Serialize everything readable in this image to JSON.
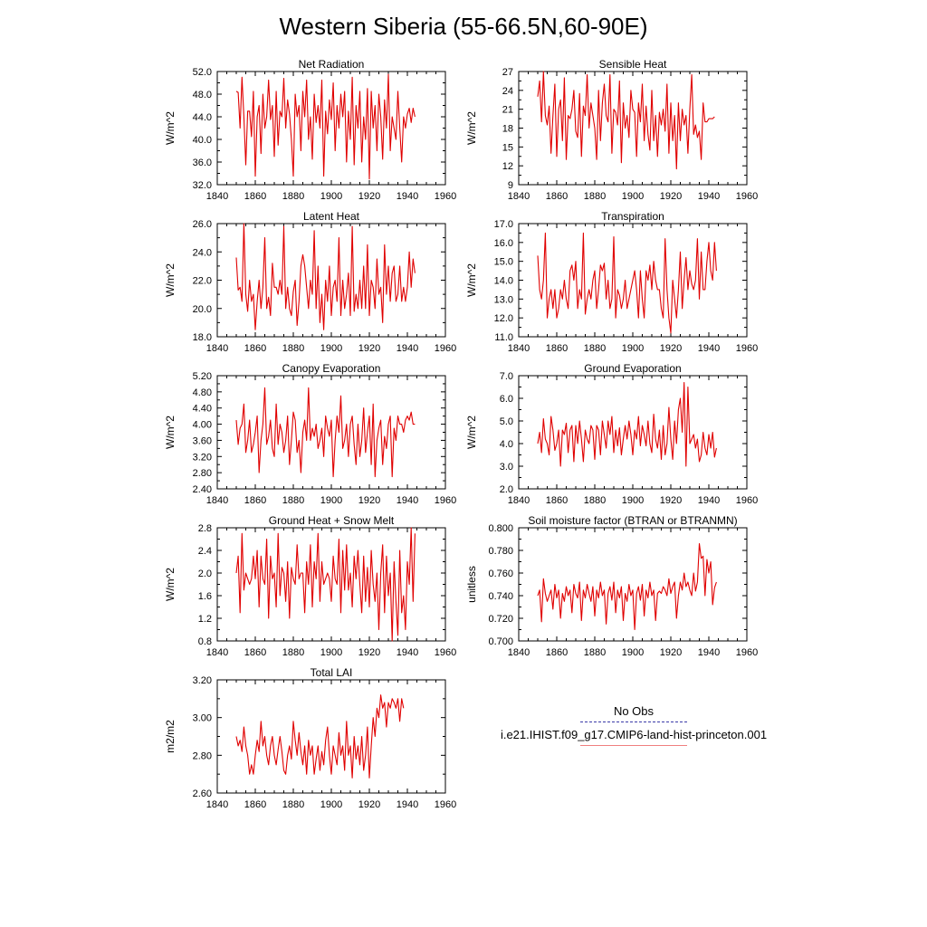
{
  "title": "Western Siberia (55-66.5N,60-90E)",
  "legend": {
    "entries": [
      {
        "label": "No Obs",
        "style": "dashed",
        "color": "#3a3aa8"
      },
      {
        "label": "i.e21.IHIST.f09_g17.CMIP6-land-hist-princeton.001",
        "style": "solid",
        "color": "#f08080"
      }
    ]
  },
  "chart_data": [
    {
      "type": "line",
      "title": "Net Radiation",
      "ylabel": "W/m^2",
      "xlim": [
        1840,
        1960
      ],
      "ylim": [
        32,
        52
      ],
      "xticks": [
        1840,
        1860,
        1880,
        1900,
        1920,
        1940,
        1960
      ],
      "yticks": [
        "32.0",
        "36.0",
        "40.0",
        "44.0",
        "48.0",
        "52.0"
      ],
      "x_start": 1850,
      "color": "#e00000",
      "values": [
        48.5,
        48.3,
        42.0,
        51.0,
        44.0,
        35.5,
        45.0,
        45.0,
        40.5,
        48.5,
        33.5,
        44.0,
        46.0,
        37.5,
        48.0,
        42.0,
        44.0,
        50.5,
        43.5,
        46.0,
        37.0,
        48.5,
        39.0,
        45.0,
        44.0,
        50.8,
        42.0,
        47.0,
        44.5,
        40.0,
        33.5,
        48.0,
        44.0,
        46.0,
        38.0,
        48.5,
        44.0,
        50.5,
        40.0,
        44.0,
        36.5,
        48.0,
        43.0,
        46.0,
        42.0,
        50.5,
        33.5,
        45.0,
        41.0,
        47.0,
        43.5,
        50.0,
        38.0,
        46.0,
        42.0,
        48.0,
        44.0,
        48.5,
        36.0,
        45.0,
        40.0,
        51.0,
        35.5,
        46.0,
        42.0,
        48.5,
        36.0,
        44.0,
        40.0,
        49.0,
        33.0,
        48.5,
        42.0,
        46.0,
        38.0,
        48.0,
        44.0,
        36.5,
        47.0,
        42.0,
        51.5,
        38.0,
        44.0,
        42.0,
        40.0,
        48.5,
        42.0,
        36.0,
        44.0,
        42.0,
        44.5,
        45.5,
        43.0,
        45.5,
        44.0
      ]
    },
    {
      "type": "line",
      "title": "Sensible Heat",
      "ylabel": "W/m^2",
      "xlim": [
        1840,
        1960
      ],
      "ylim": [
        9,
        27
      ],
      "xticks": [
        1840,
        1860,
        1880,
        1900,
        1920,
        1940,
        1960
      ],
      "yticks": [
        "9",
        "12",
        "15",
        "18",
        "21",
        "24",
        "27"
      ],
      "x_start": 1850,
      "color": "#e00000",
      "values": [
        23.0,
        25.5,
        19.0,
        27.0,
        20.0,
        18.5,
        21.5,
        14.0,
        20.0,
        25.0,
        13.5,
        21.0,
        22.5,
        16.0,
        26.0,
        13.0,
        20.0,
        19.5,
        21.0,
        24.0,
        17.5,
        16.5,
        23.5,
        13.5,
        21.5,
        20.0,
        26.5,
        18.0,
        22.0,
        20.0,
        18.0,
        13.0,
        24.0,
        16.0,
        22.0,
        25.0,
        20.0,
        19.0,
        26.5,
        14.0,
        21.0,
        20.5,
        18.5,
        25.5,
        12.5,
        22.0,
        18.0,
        20.0,
        16.5,
        24.0,
        21.0,
        20.5,
        13.5,
        22.0,
        19.0,
        25.0,
        16.0,
        21.5,
        17.0,
        14.5,
        24.0,
        16.0,
        20.0,
        13.5,
        20.5,
        18.5,
        21.0,
        17.5,
        25.0,
        14.0,
        22.0,
        16.0,
        20.0,
        11.5,
        22.0,
        16.0,
        21.0,
        18.5,
        20.0,
        14.0,
        21.0,
        26.5,
        17.0,
        18.5,
        16.5,
        17.5,
        13.0,
        22.0,
        19.0,
        19.0,
        19.5,
        19.5,
        19.5,
        19.8
      ]
    },
    {
      "type": "line",
      "title": "Latent Heat",
      "ylabel": "W/m^2",
      "xlim": [
        1840,
        1960
      ],
      "ylim": [
        18,
        26
      ],
      "xticks": [
        1840,
        1860,
        1880,
        1900,
        1920,
        1940,
        1960
      ],
      "yticks": [
        "18.0",
        "20.0",
        "22.0",
        "24.0",
        "26.0"
      ],
      "x_start": 1850,
      "color": "#e00000",
      "values": [
        23.6,
        21.3,
        21.5,
        20.5,
        26.0,
        21.0,
        19.8,
        22.0,
        20.5,
        21.0,
        18.5,
        20.5,
        22.0,
        20.0,
        21.5,
        25.0,
        20.0,
        20.8,
        19.5,
        23.2,
        21.5,
        21.5,
        21.0,
        22.0,
        21.0,
        25.8,
        20.0,
        21.5,
        20.0,
        19.5,
        21.2,
        22.0,
        18.8,
        20.5,
        23.0,
        23.8,
        23.0,
        21.5,
        20.0,
        22.0,
        21.0,
        25.5,
        20.0,
        23.0,
        19.0,
        21.0,
        18.5,
        22.0,
        20.5,
        23.0,
        19.5,
        21.5,
        22.0,
        20.5,
        25.0,
        19.5,
        22.0,
        20.0,
        21.0,
        22.5,
        19.5,
        25.8,
        19.8,
        21.0,
        20.0,
        22.0,
        20.0,
        23.0,
        20.0,
        24.5,
        19.5,
        22.0,
        21.5,
        20.0,
        23.5,
        21.0,
        21.5,
        19.0,
        24.5,
        21.0,
        23.0,
        20.5,
        22.5,
        23.0,
        20.5,
        21.0,
        23.0,
        20.5,
        21.5,
        20.5,
        21.5,
        24.0,
        21.5,
        23.5,
        22.5
      ]
    },
    {
      "type": "line",
      "title": "Transpiration",
      "ylabel": "W/m^2",
      "xlim": [
        1840,
        1960
      ],
      "ylim": [
        11,
        17
      ],
      "xticks": [
        1840,
        1860,
        1880,
        1900,
        1920,
        1940,
        1960
      ],
      "yticks": [
        "11.0",
        "12.0",
        "13.0",
        "14.0",
        "15.0",
        "16.0",
        "17.0"
      ],
      "x_start": 1850,
      "color": "#e00000",
      "values": [
        15.3,
        13.5,
        13.0,
        14.0,
        16.5,
        12.0,
        13.0,
        13.5,
        12.5,
        13.5,
        12.0,
        12.5,
        13.5,
        13.0,
        14.0,
        13.0,
        12.5,
        14.5,
        14.8,
        14.0,
        15.0,
        12.5,
        13.5,
        13.0,
        16.5,
        12.2,
        13.0,
        13.5,
        13.0,
        14.0,
        14.5,
        12.5,
        13.5,
        14.8,
        14.5,
        14.9,
        13.0,
        14.0,
        12.5,
        13.0,
        16.3,
        12.0,
        13.5,
        13.2,
        12.5,
        13.0,
        14.0,
        12.5,
        13.0,
        13.5,
        14.0,
        14.5,
        13.5,
        12.0,
        14.5,
        13.0,
        12.0,
        14.5,
        14.0,
        14.8,
        13.5,
        15.0,
        14.0,
        13.5,
        13.5,
        12.5,
        12.0,
        16.2,
        13.5,
        12.0,
        11.2,
        14.0,
        13.0,
        12.0,
        13.5,
        15.5,
        12.5,
        14.0,
        15.2,
        13.5,
        14.5,
        13.8,
        13.5,
        14.0,
        16.2,
        13.0,
        15.5,
        13.5,
        13.5,
        15.0,
        16.0,
        14.5,
        14.0,
        16.0,
        14.5
      ]
    },
    {
      "type": "line",
      "title": "Canopy Evaporation",
      "ylabel": "W/m^2",
      "xlim": [
        1840,
        1960
      ],
      "ylim": [
        2.4,
        5.2
      ],
      "xticks": [
        1840,
        1860,
        1880,
        1900,
        1920,
        1940,
        1960
      ],
      "yticks": [
        "2.40",
        "2.80",
        "3.20",
        "3.60",
        "4.00",
        "4.40",
        "4.80",
        "5.20"
      ],
      "x_start": 1850,
      "color": "#e00000",
      "values": [
        4.1,
        3.5,
        3.9,
        4.0,
        4.5,
        3.3,
        3.6,
        4.1,
        3.3,
        3.5,
        3.8,
        4.2,
        2.8,
        3.6,
        4.0,
        4.9,
        3.5,
        3.7,
        4.1,
        3.4,
        3.2,
        4.5,
        3.5,
        4.0,
        3.8,
        3.3,
        3.6,
        4.2,
        3.0,
        3.6,
        4.3,
        4.1,
        3.3,
        3.6,
        2.8,
        3.8,
        4.1,
        3.6,
        4.9,
        3.6,
        3.9,
        3.7,
        4.0,
        3.4,
        3.6,
        3.9,
        3.2,
        4.2,
        3.9,
        3.7,
        4.1,
        2.7,
        3.6,
        4.2,
        3.8,
        4.7,
        3.4,
        3.6,
        4.0,
        3.2,
        4.0,
        4.2,
        3.5,
        3.0,
        4.0,
        3.2,
        3.6,
        4.4,
        3.3,
        3.8,
        4.2,
        3.0,
        4.5,
        2.7,
        3.6,
        3.9,
        4.1,
        3.0,
        3.7,
        3.4,
        4.0,
        4.2,
        2.7,
        3.9,
        3.6,
        4.2,
        4.0,
        4.0,
        3.8,
        4.1,
        4.2,
        4.1,
        4.3,
        4.0,
        4.0
      ]
    },
    {
      "type": "line",
      "title": "Ground Evaporation",
      "ylabel": "W/m^2",
      "xlim": [
        1840,
        1960
      ],
      "ylim": [
        2,
        7
      ],
      "xticks": [
        1840,
        1860,
        1880,
        1900,
        1920,
        1940,
        1960
      ],
      "yticks": [
        "2.0",
        "3.0",
        "4.0",
        "5.0",
        "6.0",
        "7.0"
      ],
      "x_start": 1850,
      "color": "#e00000",
      "values": [
        4.0,
        4.5,
        3.6,
        5.1,
        4.2,
        4.0,
        3.5,
        5.2,
        4.6,
        3.7,
        4.0,
        4.6,
        3.0,
        4.6,
        4.4,
        4.9,
        3.6,
        4.6,
        4.8,
        3.2,
        4.8,
        4.0,
        5.0,
        4.2,
        3.2,
        4.6,
        4.2,
        4.0,
        4.8,
        4.6,
        3.3,
        4.8,
        4.6,
        3.5,
        5.0,
        4.4,
        3.8,
        5.0,
        4.4,
        5.2,
        3.6,
        4.6,
        3.9,
        4.7,
        3.5,
        4.2,
        4.8,
        4.2,
        5.0,
        4.4,
        3.5,
        4.6,
        4.2,
        5.2,
        3.9,
        4.8,
        4.4,
        3.9,
        5.0,
        4.0,
        3.6,
        5.3,
        4.2,
        3.8,
        4.6,
        3.3,
        4.8,
        3.5,
        4.0,
        5.6,
        4.2,
        3.3,
        5.0,
        4.0,
        5.5,
        6.0,
        4.5,
        6.7,
        3.0,
        6.5,
        4.0,
        4.2,
        4.4,
        3.8,
        4.2,
        3.2,
        3.5,
        4.5,
        3.8,
        3.5,
        4.4,
        3.8,
        4.5,
        3.4,
        3.8
      ]
    },
    {
      "type": "line",
      "title": "Ground Heat + Snow Melt",
      "ylabel": "W/m^2",
      "xlim": [
        1840,
        1960
      ],
      "ylim": [
        0.8,
        2.8
      ],
      "xticks": [
        1840,
        1860,
        1880,
        1900,
        1920,
        1940,
        1960
      ],
      "yticks": [
        "0.8",
        "1.2",
        "1.6",
        "2.0",
        "2.4",
        "2.8"
      ],
      "x_start": 1850,
      "color": "#e00000",
      "values": [
        2.0,
        2.3,
        1.3,
        2.7,
        1.7,
        2.0,
        1.9,
        1.8,
        1.9,
        2.3,
        1.9,
        2.4,
        1.4,
        2.3,
        1.9,
        1.8,
        2.6,
        1.2,
        2.3,
        1.9,
        2.0,
        1.4,
        2.7,
        1.6,
        2.1,
        2.0,
        1.5,
        2.2,
        1.2,
        2.1,
        1.9,
        1.8,
        2.5,
        1.9,
        2.0,
        2.0,
        1.3,
        2.2,
        1.8,
        2.5,
        1.4,
        2.2,
        1.9,
        2.7,
        1.5,
        2.2,
        1.8,
        1.9,
        2.0,
        1.9,
        1.5,
        2.3,
        1.9,
        1.8,
        2.6,
        1.3,
        2.4,
        1.7,
        2.5,
        1.7,
        2.0,
        1.4,
        2.3,
        1.9,
        2.4,
        1.8,
        1.3,
        2.3,
        1.5,
        2.1,
        1.4,
        2.4,
        1.8,
        1.5,
        2.0,
        1.0,
        2.0,
        2.5,
        1.3,
        2.3,
        1.6,
        2.0,
        0.8,
        2.2,
        1.5,
        0.9,
        2.4,
        1.3,
        1.6,
        1.0,
        2.2,
        1.8,
        2.8,
        1.5,
        2.7
      ]
    },
    {
      "type": "line",
      "title": "Soil moisture factor (BTRAN or BTRANMN)",
      "ylabel": "unitless",
      "xlim": [
        1840,
        1960
      ],
      "ylim": [
        0.7,
        0.8
      ],
      "xticks": [
        1840,
        1860,
        1880,
        1900,
        1920,
        1940,
        1960
      ],
      "yticks": [
        "0.700",
        "0.720",
        "0.740",
        "0.760",
        "0.780",
        "0.800"
      ],
      "x_start": 1850,
      "color": "#e00000",
      "values": [
        0.74,
        0.745,
        0.717,
        0.755,
        0.742,
        0.735,
        0.74,
        0.745,
        0.728,
        0.75,
        0.738,
        0.745,
        0.72,
        0.742,
        0.735,
        0.748,
        0.74,
        0.745,
        0.725,
        0.75,
        0.742,
        0.738,
        0.752,
        0.718,
        0.745,
        0.738,
        0.75,
        0.742,
        0.735,
        0.748,
        0.722,
        0.745,
        0.738,
        0.752,
        0.74,
        0.745,
        0.715,
        0.742,
        0.748,
        0.736,
        0.752,
        0.725,
        0.745,
        0.738,
        0.748,
        0.718,
        0.742,
        0.735,
        0.75,
        0.74,
        0.745,
        0.71,
        0.742,
        0.748,
        0.736,
        0.75,
        0.722,
        0.745,
        0.738,
        0.752,
        0.74,
        0.745,
        0.718,
        0.742,
        0.744,
        0.742,
        0.748,
        0.745,
        0.74,
        0.755,
        0.742,
        0.748,
        0.752,
        0.72,
        0.74,
        0.752,
        0.745,
        0.76,
        0.748,
        0.752,
        0.745,
        0.74,
        0.76,
        0.744,
        0.752,
        0.786,
        0.773,
        0.775,
        0.74,
        0.772,
        0.76,
        0.77,
        0.732,
        0.747,
        0.752
      ]
    },
    {
      "type": "line",
      "title": "Total LAI",
      "ylabel": "m2/m2",
      "xlim": [
        1840,
        1960
      ],
      "ylim": [
        2.6,
        3.2
      ],
      "xticks": [
        1840,
        1860,
        1880,
        1900,
        1920,
        1940,
        1960
      ],
      "yticks": [
        "2.60",
        "2.80",
        "3.00",
        "3.20"
      ],
      "x_start": 1850,
      "color": "#e00000",
      "values": [
        2.9,
        2.85,
        2.88,
        2.82,
        2.95,
        2.85,
        2.8,
        2.7,
        2.75,
        2.7,
        2.8,
        2.88,
        2.82,
        2.98,
        2.85,
        2.9,
        2.8,
        2.75,
        2.85,
        2.9,
        2.8,
        2.75,
        2.83,
        2.9,
        2.82,
        2.72,
        2.7,
        2.8,
        2.85,
        2.78,
        2.98,
        2.88,
        2.8,
        2.92,
        2.82,
        2.75,
        2.85,
        2.7,
        2.88,
        2.8,
        2.85,
        2.7,
        2.78,
        2.85,
        2.72,
        2.82,
        2.75,
        2.88,
        2.95,
        2.8,
        2.7,
        2.85,
        2.8,
        2.75,
        2.92,
        2.8,
        2.85,
        2.72,
        2.98,
        2.8,
        2.85,
        2.68,
        2.9,
        2.78,
        2.85,
        2.75,
        2.9,
        2.72,
        2.8,
        2.95,
        2.68,
        2.85,
        3.0,
        2.9,
        3.05,
        3.0,
        3.12,
        3.05,
        3.08,
        2.95,
        3.08,
        3.05,
        3.1,
        3.08,
        3.05,
        3.1,
        2.98,
        3.1,
        3.05
      ]
    }
  ]
}
